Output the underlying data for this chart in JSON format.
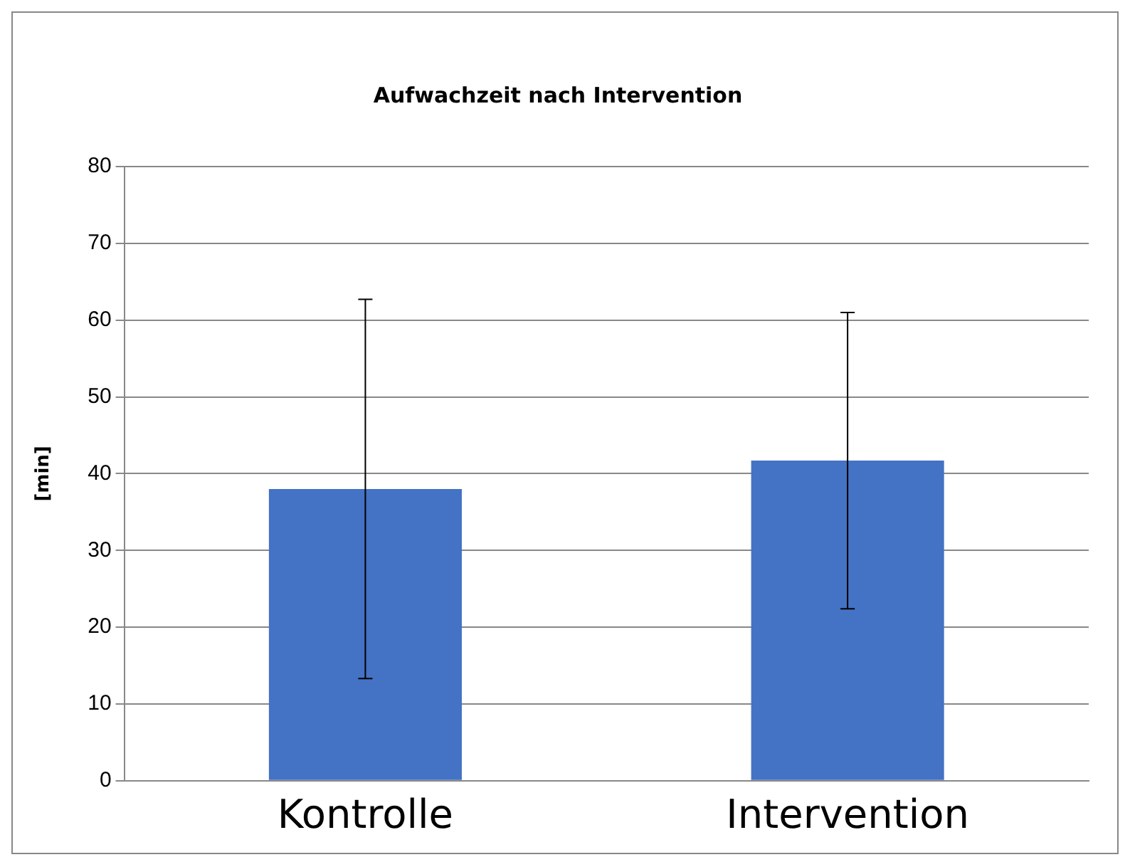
{
  "chart_data": {
    "type": "bar",
    "title": "Aufwachzeit nach Intervention",
    "ylabel": "[min]",
    "categories": [
      "Kontrolle",
      "Intervention"
    ],
    "values": [
      38,
      41.7
    ],
    "errors": [
      24.7,
      19.3
    ],
    "color": "#4472c4",
    "ylim": [
      0,
      80
    ],
    "yticks": [
      0,
      10,
      20,
      30,
      40,
      50,
      60,
      70,
      80
    ],
    "grid": "y",
    "legend": false
  }
}
